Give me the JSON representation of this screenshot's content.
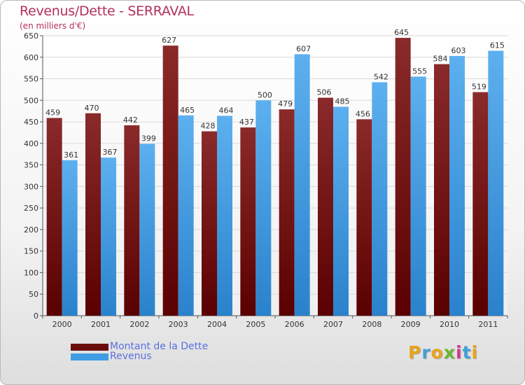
{
  "title": "Revenus/Dette - SERRAVAL",
  "subtitle": "(en milliers d'€)",
  "logo_text": "Proxiti",
  "colors": {
    "dette": "#6b0d0d",
    "revenus": "#3f9de3",
    "title": "#b4305a",
    "legend_text": "#5a6fe0"
  },
  "legend": [
    {
      "label": "Montant de la Dette",
      "color": "#6b0d0d"
    },
    {
      "label": "Revenus",
      "color": "#3f9de3"
    }
  ],
  "chart_data": {
    "type": "bar",
    "title": "Revenus/Dette - SERRAVAL",
    "subtitle": "(en milliers d'€)",
    "categories": [
      "2000",
      "2001",
      "2002",
      "2003",
      "2004",
      "2005",
      "2006",
      "2007",
      "2008",
      "2009",
      "2010",
      "2011"
    ],
    "series": [
      {
        "name": "Montant de la Dette",
        "values": [
          459,
          470,
          442,
          627,
          428,
          437,
          479,
          506,
          456,
          645,
          584,
          519
        ]
      },
      {
        "name": "Revenus",
        "values": [
          361,
          367,
          399,
          465,
          464,
          500,
          607,
          485,
          542,
          555,
          603,
          615
        ]
      }
    ],
    "ylim": [
      0,
      650
    ],
    "yticks": [
      0,
      50,
      100,
      150,
      200,
      250,
      300,
      350,
      400,
      450,
      500,
      550,
      600,
      650
    ],
    "grid": true,
    "legend_position": "bottom-left"
  }
}
